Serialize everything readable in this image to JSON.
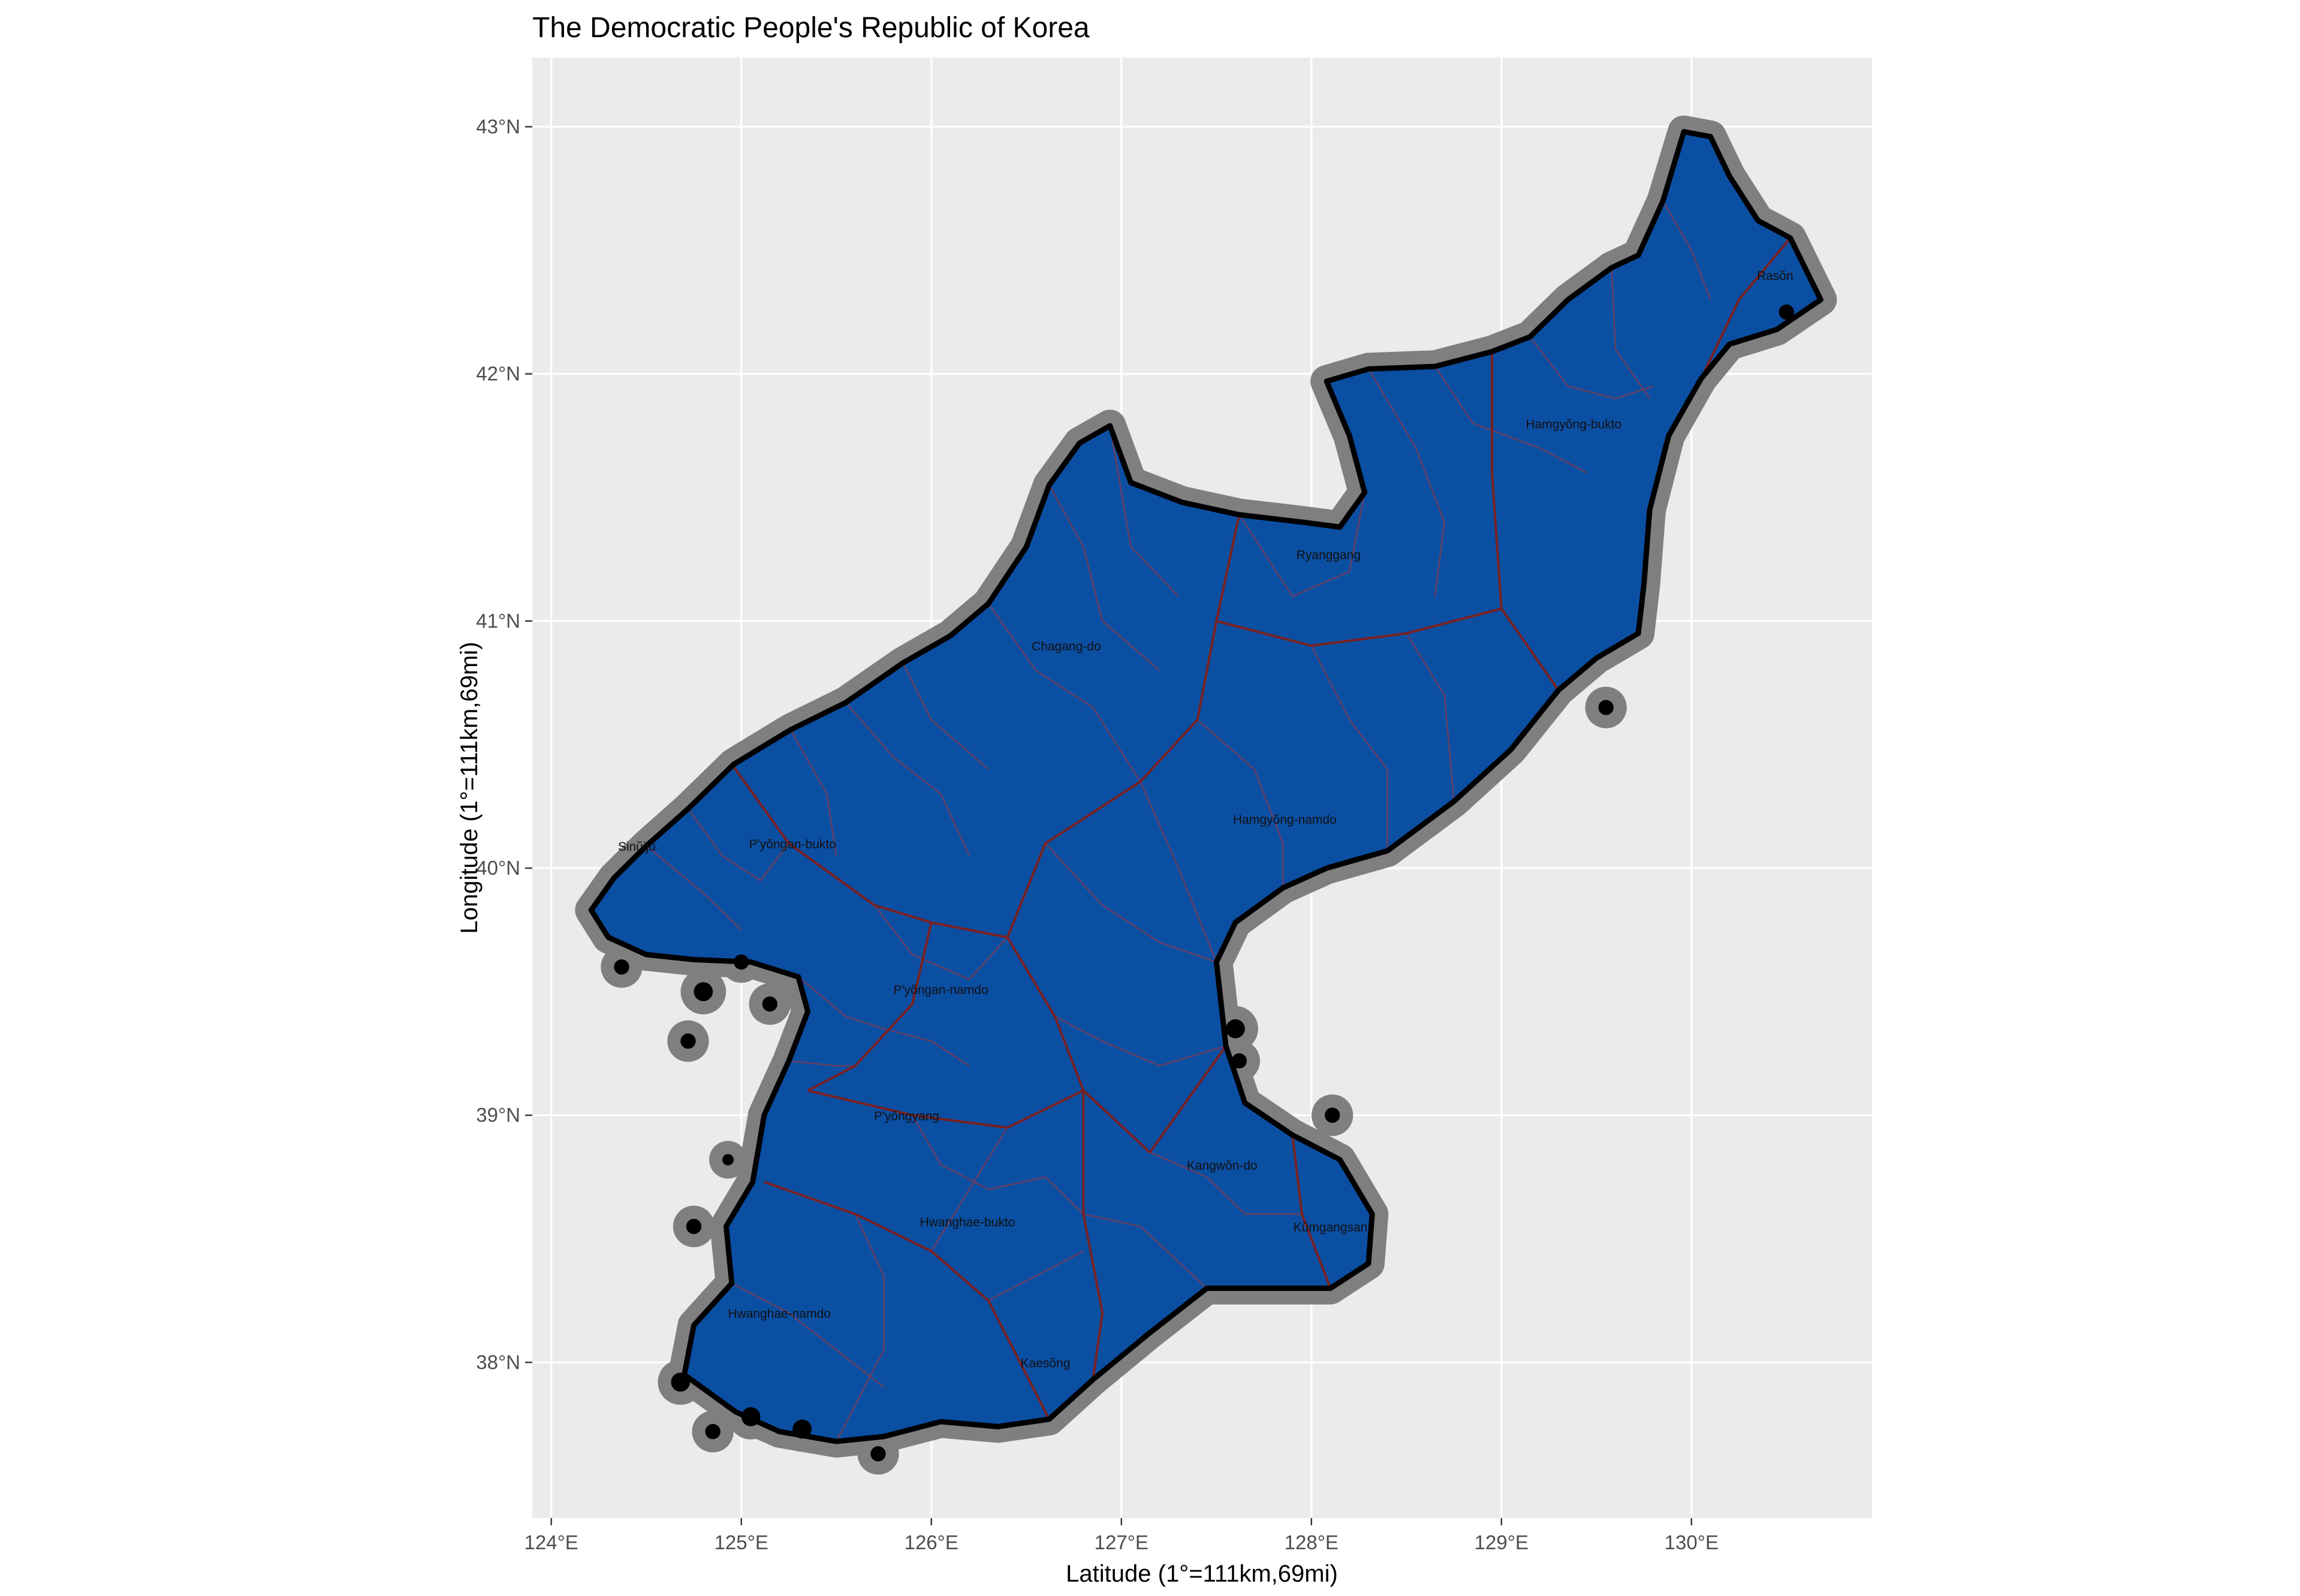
{
  "title": "The Democratic People's Republic of Korea",
  "x_axis": {
    "label": "Latitude (1°=111km,69mi)",
    "range": [
      123.9,
      130.95
    ],
    "ticks": [
      {
        "value": 124,
        "label": "124°E"
      },
      {
        "value": 125,
        "label": "125°E"
      },
      {
        "value": 126,
        "label": "126°E"
      },
      {
        "value": 127,
        "label": "127°E"
      },
      {
        "value": 128,
        "label": "128°E"
      },
      {
        "value": 129,
        "label": "129°E"
      },
      {
        "value": 130,
        "label": "130°E"
      }
    ]
  },
  "y_axis": {
    "label": "Longitude (1°=111km,69mi)",
    "range": [
      37.37,
      43.28
    ],
    "ticks": [
      {
        "value": 38,
        "label": "38°N"
      },
      {
        "value": 39,
        "label": "39°N"
      },
      {
        "value": 40,
        "label": "40°N"
      },
      {
        "value": 41,
        "label": "41°N"
      },
      {
        "value": 42,
        "label": "42°N"
      },
      {
        "value": 43,
        "label": "43°N"
      }
    ]
  },
  "colors": {
    "panel_background": "#ebebeb",
    "grid": "#ffffff",
    "land_fill": "#0b4fa3",
    "coast_halo": "#7f7f7f",
    "coast_line": "#000000",
    "province_border": "#7a2020",
    "county_border": "#8a3a4a"
  },
  "regions": [
    {
      "name": "Sinŭiju",
      "lon": 124.45,
      "lat": 40.07
    },
    {
      "name": "P'yŏngan-bukto",
      "lon": 125.27,
      "lat": 40.08
    },
    {
      "name": "Chagang-do",
      "lon": 126.71,
      "lat": 40.88
    },
    {
      "name": "Ryanggang",
      "lon": 128.09,
      "lat": 41.25
    },
    {
      "name": "Hamgyŏng-bukto",
      "lon": 129.38,
      "lat": 41.78
    },
    {
      "name": "Rasŏn",
      "lon": 130.44,
      "lat": 42.38
    },
    {
      "name": "Hamgyŏng-namdo",
      "lon": 127.86,
      "lat": 40.18
    },
    {
      "name": "P'yŏngan-namdo",
      "lon": 126.05,
      "lat": 39.49
    },
    {
      "name": "P'yŏngyang",
      "lon": 125.87,
      "lat": 38.98
    },
    {
      "name": "Kangwŏn-do",
      "lon": 127.53,
      "lat": 38.78
    },
    {
      "name": "Hwanghae-bukto",
      "lon": 126.19,
      "lat": 38.55
    },
    {
      "name": "Kŭmgangsan",
      "lon": 128.1,
      "lat": 38.53
    },
    {
      "name": "Hwanghae-namdo",
      "lon": 125.2,
      "lat": 38.18
    },
    {
      "name": "Kaesŏng",
      "lon": 126.6,
      "lat": 37.98
    }
  ],
  "outline": [
    [
      124.21,
      39.83
    ],
    [
      124.33,
      39.96
    ],
    [
      124.5,
      40.09
    ],
    [
      124.72,
      40.24
    ],
    [
      124.96,
      40.42
    ],
    [
      125.26,
      40.56
    ],
    [
      125.55,
      40.67
    ],
    [
      125.85,
      40.83
    ],
    [
      126.1,
      40.94
    ],
    [
      126.3,
      41.07
    ],
    [
      126.5,
      41.3
    ],
    [
      126.62,
      41.55
    ],
    [
      126.78,
      41.72
    ],
    [
      126.94,
      41.79
    ],
    [
      127.05,
      41.56
    ],
    [
      127.32,
      41.48
    ],
    [
      127.62,
      41.43
    ],
    [
      127.95,
      41.4
    ],
    [
      128.15,
      41.38
    ],
    [
      128.28,
      41.52
    ],
    [
      128.2,
      41.75
    ],
    [
      128.08,
      41.97
    ],
    [
      128.3,
      42.02
    ],
    [
      128.65,
      42.03
    ],
    [
      128.95,
      42.09
    ],
    [
      129.15,
      42.15
    ],
    [
      129.35,
      42.3
    ],
    [
      129.58,
      42.43
    ],
    [
      129.72,
      42.48
    ],
    [
      129.85,
      42.7
    ],
    [
      129.96,
      42.98
    ],
    [
      130.1,
      42.96
    ],
    [
      130.2,
      42.8
    ],
    [
      130.35,
      42.62
    ],
    [
      130.52,
      42.55
    ],
    [
      130.68,
      42.3
    ],
    [
      130.45,
      42.18
    ],
    [
      130.2,
      42.12
    ],
    [
      130.05,
      41.98
    ],
    [
      129.88,
      41.75
    ],
    [
      129.78,
      41.45
    ],
    [
      129.75,
      41.15
    ],
    [
      129.72,
      40.95
    ],
    [
      129.5,
      40.85
    ],
    [
      129.3,
      40.72
    ],
    [
      129.05,
      40.48
    ],
    [
      128.75,
      40.27
    ],
    [
      128.4,
      40.07
    ],
    [
      128.08,
      40.0
    ],
    [
      127.85,
      39.92
    ],
    [
      127.6,
      39.78
    ],
    [
      127.5,
      39.62
    ],
    [
      127.55,
      39.28
    ],
    [
      127.65,
      39.05
    ],
    [
      127.9,
      38.92
    ],
    [
      128.15,
      38.82
    ],
    [
      128.32,
      38.6
    ],
    [
      128.3,
      38.4
    ],
    [
      128.1,
      38.3
    ],
    [
      127.8,
      38.3
    ],
    [
      127.45,
      38.3
    ],
    [
      127.15,
      38.12
    ],
    [
      126.85,
      37.93
    ],
    [
      126.62,
      37.77
    ],
    [
      126.35,
      37.74
    ],
    [
      126.05,
      37.76
    ],
    [
      125.75,
      37.7
    ],
    [
      125.5,
      37.68
    ],
    [
      125.2,
      37.72
    ],
    [
      124.97,
      37.8
    ],
    [
      124.7,
      37.95
    ],
    [
      124.75,
      38.15
    ],
    [
      124.95,
      38.32
    ],
    [
      124.92,
      38.55
    ],
    [
      125.06,
      38.73
    ],
    [
      125.12,
      39.0
    ],
    [
      125.25,
      39.22
    ],
    [
      125.35,
      39.42
    ],
    [
      125.3,
      39.56
    ],
    [
      125.05,
      39.62
    ],
    [
      124.75,
      39.63
    ],
    [
      124.5,
      39.65
    ],
    [
      124.3,
      39.72
    ]
  ],
  "provinces": [
    [
      [
        124.95,
        40.42
      ],
      [
        125.25,
        40.1
      ],
      [
        125.7,
        39.85
      ],
      [
        126.0,
        39.78
      ],
      [
        126.4,
        39.72
      ]
    ],
    [
      [
        126.4,
        39.72
      ],
      [
        126.6,
        40.1
      ],
      [
        127.1,
        40.35
      ],
      [
        127.4,
        40.6
      ],
      [
        127.5,
        41.0
      ],
      [
        127.62,
        41.43
      ]
    ],
    [
      [
        127.5,
        41.0
      ],
      [
        128.0,
        40.9
      ],
      [
        128.5,
        40.95
      ],
      [
        129.0,
        41.05
      ],
      [
        129.3,
        40.72
      ]
    ],
    [
      [
        129.0,
        41.05
      ],
      [
        128.95,
        41.6
      ],
      [
        128.95,
        42.09
      ]
    ],
    [
      [
        126.0,
        39.78
      ],
      [
        125.9,
        39.45
      ],
      [
        125.6,
        39.2
      ],
      [
        125.35,
        39.1
      ]
    ],
    [
      [
        126.4,
        39.72
      ],
      [
        126.65,
        39.4
      ],
      [
        126.8,
        39.1
      ],
      [
        127.15,
        38.85
      ],
      [
        127.55,
        39.28
      ]
    ],
    [
      [
        125.35,
        39.1
      ],
      [
        125.9,
        39.0
      ],
      [
        126.4,
        38.95
      ],
      [
        126.8,
        39.1
      ]
    ],
    [
      [
        125.12,
        38.73
      ],
      [
        125.6,
        38.6
      ],
      [
        126.0,
        38.45
      ],
      [
        126.3,
        38.25
      ],
      [
        126.62,
        37.77
      ]
    ],
    [
      [
        126.8,
        39.1
      ],
      [
        126.8,
        38.6
      ],
      [
        126.9,
        38.2
      ],
      [
        126.85,
        37.93
      ]
    ],
    [
      [
        127.9,
        38.92
      ],
      [
        127.95,
        38.6
      ],
      [
        128.1,
        38.3
      ]
    ],
    [
      [
        130.05,
        41.98
      ],
      [
        130.25,
        42.3
      ],
      [
        130.52,
        42.55
      ]
    ]
  ],
  "counties": [
    [
      [
        124.5,
        40.09
      ],
      [
        124.8,
        39.9
      ],
      [
        125.0,
        39.75
      ]
    ],
    [
      [
        125.26,
        40.56
      ],
      [
        125.45,
        40.3
      ],
      [
        125.5,
        40.05
      ]
    ],
    [
      [
        125.55,
        40.67
      ],
      [
        125.8,
        40.45
      ],
      [
        126.05,
        40.3
      ],
      [
        126.2,
        40.05
      ]
    ],
    [
      [
        125.85,
        40.83
      ],
      [
        126.0,
        40.6
      ],
      [
        126.3,
        40.4
      ]
    ],
    [
      [
        126.3,
        41.07
      ],
      [
        126.55,
        40.8
      ],
      [
        126.85,
        40.65
      ],
      [
        127.1,
        40.35
      ]
    ],
    [
      [
        126.62,
        41.55
      ],
      [
        126.8,
        41.3
      ],
      [
        126.9,
        41.0
      ],
      [
        127.2,
        40.8
      ]
    ],
    [
      [
        126.94,
        41.79
      ],
      [
        127.05,
        41.3
      ],
      [
        127.3,
        41.1
      ]
    ],
    [
      [
        127.62,
        41.43
      ],
      [
        127.9,
        41.1
      ],
      [
        128.2,
        41.2
      ],
      [
        128.28,
        41.52
      ]
    ],
    [
      [
        128.3,
        42.02
      ],
      [
        128.55,
        41.7
      ],
      [
        128.7,
        41.4
      ],
      [
        128.65,
        41.1
      ]
    ],
    [
      [
        128.65,
        42.03
      ],
      [
        128.85,
        41.8
      ],
      [
        129.2,
        41.7
      ],
      [
        129.45,
        41.6
      ]
    ],
    [
      [
        129.15,
        42.15
      ],
      [
        129.35,
        41.95
      ],
      [
        129.6,
        41.9
      ],
      [
        129.8,
        41.95
      ]
    ],
    [
      [
        129.58,
        42.43
      ],
      [
        129.6,
        42.1
      ],
      [
        129.78,
        41.9
      ]
    ],
    [
      [
        129.85,
        42.7
      ],
      [
        130.0,
        42.5
      ],
      [
        130.1,
        42.3
      ]
    ],
    [
      [
        128.0,
        40.9
      ],
      [
        128.2,
        40.6
      ],
      [
        128.4,
        40.4
      ],
      [
        128.4,
        40.07
      ]
    ],
    [
      [
        128.5,
        40.95
      ],
      [
        128.7,
        40.7
      ],
      [
        128.75,
        40.27
      ]
    ],
    [
      [
        127.4,
        40.6
      ],
      [
        127.7,
        40.4
      ],
      [
        127.85,
        40.1
      ],
      [
        127.85,
        39.92
      ]
    ],
    [
      [
        127.1,
        40.35
      ],
      [
        127.3,
        40.0
      ],
      [
        127.5,
        39.62
      ]
    ],
    [
      [
        126.6,
        40.1
      ],
      [
        126.9,
        39.85
      ],
      [
        127.2,
        39.7
      ],
      [
        127.5,
        39.62
      ]
    ],
    [
      [
        125.7,
        39.85
      ],
      [
        125.9,
        39.65
      ],
      [
        126.2,
        39.55
      ],
      [
        126.4,
        39.72
      ]
    ],
    [
      [
        125.3,
        39.56
      ],
      [
        125.55,
        39.4
      ],
      [
        125.75,
        39.35
      ],
      [
        126.0,
        39.3
      ],
      [
        126.2,
        39.2
      ]
    ],
    [
      [
        126.65,
        39.4
      ],
      [
        126.9,
        39.3
      ],
      [
        127.2,
        39.2
      ],
      [
        127.55,
        39.28
      ]
    ],
    [
      [
        127.15,
        38.85
      ],
      [
        127.45,
        38.75
      ],
      [
        127.65,
        38.6
      ],
      [
        127.95,
        38.6
      ]
    ],
    [
      [
        126.8,
        38.6
      ],
      [
        127.1,
        38.55
      ],
      [
        127.45,
        38.3
      ]
    ],
    [
      [
        125.6,
        38.6
      ],
      [
        125.75,
        38.35
      ],
      [
        125.75,
        38.05
      ],
      [
        125.5,
        37.68
      ]
    ],
    [
      [
        126.0,
        38.45
      ],
      [
        126.2,
        38.7
      ],
      [
        126.4,
        38.95
      ]
    ],
    [
      [
        124.95,
        38.32
      ],
      [
        125.25,
        38.2
      ],
      [
        125.5,
        38.05
      ],
      [
        125.75,
        37.9
      ]
    ],
    [
      [
        126.3,
        38.25
      ],
      [
        126.55,
        38.35
      ],
      [
        126.8,
        38.45
      ]
    ],
    [
      [
        125.9,
        39.0
      ],
      [
        126.05,
        38.8
      ],
      [
        126.3,
        38.7
      ],
      [
        126.6,
        38.75
      ],
      [
        126.8,
        38.6
      ]
    ],
    [
      [
        125.25,
        39.22
      ],
      [
        125.5,
        39.2
      ],
      [
        125.6,
        39.2
      ]
    ],
    [
      [
        124.72,
        40.24
      ],
      [
        124.9,
        40.05
      ],
      [
        125.1,
        39.95
      ],
      [
        125.25,
        40.1
      ]
    ]
  ],
  "islands": [
    {
      "lon": 124.68,
      "lat": 37.92,
      "r": 0.05
    },
    {
      "lon": 124.85,
      "lat": 37.72,
      "r": 0.04
    },
    {
      "lon": 125.05,
      "lat": 37.78,
      "r": 0.05
    },
    {
      "lon": 125.32,
      "lat": 37.73,
      "r": 0.05
    },
    {
      "lon": 125.72,
      "lat": 37.63,
      "r": 0.04
    },
    {
      "lon": 124.75,
      "lat": 38.55,
      "r": 0.04
    },
    {
      "lon": 124.93,
      "lat": 38.82,
      "r": 0.03
    },
    {
      "lon": 124.72,
      "lat": 39.3,
      "r": 0.04
    },
    {
      "lon": 124.8,
      "lat": 39.5,
      "r": 0.05
    },
    {
      "lon": 125.0,
      "lat": 39.62,
      "r": 0.04
    },
    {
      "lon": 125.15,
      "lat": 39.45,
      "r": 0.04
    },
    {
      "lon": 124.37,
      "lat": 39.6,
      "r": 0.04
    },
    {
      "lon": 127.6,
      "lat": 39.35,
      "r": 0.05
    },
    {
      "lon": 127.62,
      "lat": 39.22,
      "r": 0.04
    },
    {
      "lon": 128.11,
      "lat": 39.0,
      "r": 0.04
    },
    {
      "lon": 129.55,
      "lat": 40.65,
      "r": 0.04
    },
    {
      "lon": 130.5,
      "lat": 42.25,
      "r": 0.04
    }
  ]
}
